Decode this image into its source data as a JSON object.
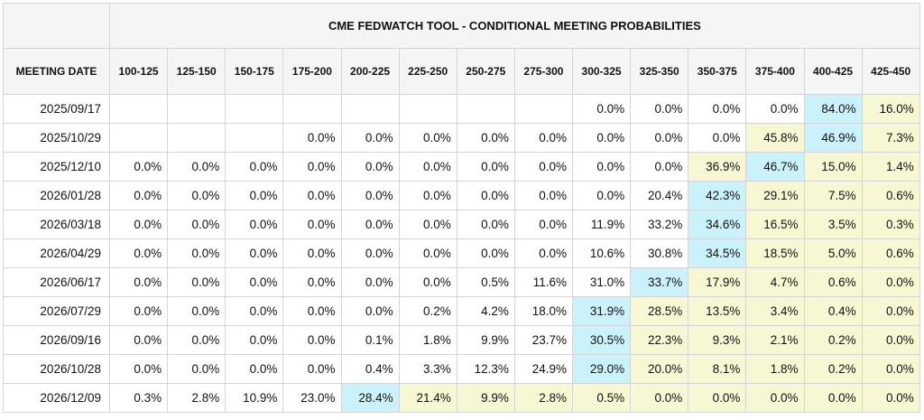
{
  "title": "CME FEDWATCH TOOL - CONDITIONAL MEETING PROBABILITIES",
  "date_header": "MEETING DATE",
  "columns": [
    "100-125",
    "125-150",
    "150-175",
    "175-200",
    "200-225",
    "225-250",
    "250-275",
    "275-300",
    "300-325",
    "325-350",
    "350-375",
    "375-400",
    "400-425",
    "425-450"
  ],
  "colors": {
    "blue_highlight": "#cbf2fa",
    "yellow_highlight": "#f7f7d4"
  },
  "rows": [
    {
      "date": "2025/09/17",
      "values": [
        "",
        "",
        "",
        "",
        "",
        "",
        "",
        "",
        "0.0%",
        "0.0%",
        "0.0%",
        "0.0%",
        "84.0%",
        "16.0%"
      ],
      "hl": [
        "",
        "",
        "",
        "",
        "",
        "",
        "",
        "",
        "",
        "",
        "",
        "",
        "b",
        "y"
      ]
    },
    {
      "date": "2025/10/29",
      "values": [
        "",
        "",
        "",
        "0.0%",
        "0.0%",
        "0.0%",
        "0.0%",
        "0.0%",
        "0.0%",
        "0.0%",
        "0.0%",
        "45.8%",
        "46.9%",
        "7.3%"
      ],
      "hl": [
        "",
        "",
        "",
        "",
        "",
        "",
        "",
        "",
        "",
        "",
        "",
        "y",
        "b",
        "y"
      ]
    },
    {
      "date": "2025/12/10",
      "values": [
        "0.0%",
        "0.0%",
        "0.0%",
        "0.0%",
        "0.0%",
        "0.0%",
        "0.0%",
        "0.0%",
        "0.0%",
        "0.0%",
        "36.9%",
        "46.7%",
        "15.0%",
        "1.4%"
      ],
      "hl": [
        "",
        "",
        "",
        "",
        "",
        "",
        "",
        "",
        "",
        "",
        "y",
        "b",
        "y",
        "y"
      ]
    },
    {
      "date": "2026/01/28",
      "values": [
        "0.0%",
        "0.0%",
        "0.0%",
        "0.0%",
        "0.0%",
        "0.0%",
        "0.0%",
        "0.0%",
        "0.0%",
        "20.4%",
        "42.3%",
        "29.1%",
        "7.5%",
        "0.6%"
      ],
      "hl": [
        "",
        "",
        "",
        "",
        "",
        "",
        "",
        "",
        "",
        "",
        "b",
        "y",
        "y",
        "y"
      ]
    },
    {
      "date": "2026/03/18",
      "values": [
        "0.0%",
        "0.0%",
        "0.0%",
        "0.0%",
        "0.0%",
        "0.0%",
        "0.0%",
        "0.0%",
        "11.9%",
        "33.2%",
        "34.6%",
        "16.5%",
        "3.5%",
        "0.3%"
      ],
      "hl": [
        "",
        "",
        "",
        "",
        "",
        "",
        "",
        "",
        "",
        "",
        "b",
        "y",
        "y",
        "y"
      ]
    },
    {
      "date": "2026/04/29",
      "values": [
        "0.0%",
        "0.0%",
        "0.0%",
        "0.0%",
        "0.0%",
        "0.0%",
        "0.0%",
        "0.0%",
        "10.6%",
        "30.8%",
        "34.5%",
        "18.5%",
        "5.0%",
        "0.6%"
      ],
      "hl": [
        "",
        "",
        "",
        "",
        "",
        "",
        "",
        "",
        "",
        "",
        "b",
        "y",
        "y",
        "y"
      ]
    },
    {
      "date": "2026/06/17",
      "values": [
        "0.0%",
        "0.0%",
        "0.0%",
        "0.0%",
        "0.0%",
        "0.0%",
        "0.5%",
        "11.6%",
        "31.0%",
        "33.7%",
        "17.9%",
        "4.7%",
        "0.6%",
        "0.0%"
      ],
      "hl": [
        "",
        "",
        "",
        "",
        "",
        "",
        "",
        "",
        "",
        "b",
        "y",
        "y",
        "y",
        "y"
      ]
    },
    {
      "date": "2026/07/29",
      "values": [
        "0.0%",
        "0.0%",
        "0.0%",
        "0.0%",
        "0.0%",
        "0.2%",
        "4.2%",
        "18.0%",
        "31.9%",
        "28.5%",
        "13.5%",
        "3.4%",
        "0.4%",
        "0.0%"
      ],
      "hl": [
        "",
        "",
        "",
        "",
        "",
        "",
        "",
        "",
        "b",
        "y",
        "y",
        "y",
        "y",
        "y"
      ]
    },
    {
      "date": "2026/09/16",
      "values": [
        "0.0%",
        "0.0%",
        "0.0%",
        "0.0%",
        "0.1%",
        "1.8%",
        "9.9%",
        "23.7%",
        "30.5%",
        "22.3%",
        "9.3%",
        "2.1%",
        "0.2%",
        "0.0%"
      ],
      "hl": [
        "",
        "",
        "",
        "",
        "",
        "",
        "",
        "",
        "b",
        "y",
        "y",
        "y",
        "y",
        "y"
      ]
    },
    {
      "date": "2026/10/28",
      "values": [
        "0.0%",
        "0.0%",
        "0.0%",
        "0.0%",
        "0.4%",
        "3.3%",
        "12.3%",
        "24.9%",
        "29.0%",
        "20.0%",
        "8.1%",
        "1.8%",
        "0.2%",
        "0.0%"
      ],
      "hl": [
        "",
        "",
        "",
        "",
        "",
        "",
        "",
        "",
        "b",
        "y",
        "y",
        "y",
        "y",
        "y"
      ]
    },
    {
      "date": "2026/12/09",
      "values": [
        "0.3%",
        "2.8%",
        "10.9%",
        "23.0%",
        "28.4%",
        "21.4%",
        "9.9%",
        "2.8%",
        "0.5%",
        "0.0%",
        "0.0%",
        "0.0%",
        "0.0%",
        "0.0%"
      ],
      "hl": [
        "",
        "",
        "",
        "",
        "b",
        "y",
        "y",
        "y",
        "y",
        "y",
        "y",
        "y",
        "y",
        "y"
      ]
    }
  ]
}
